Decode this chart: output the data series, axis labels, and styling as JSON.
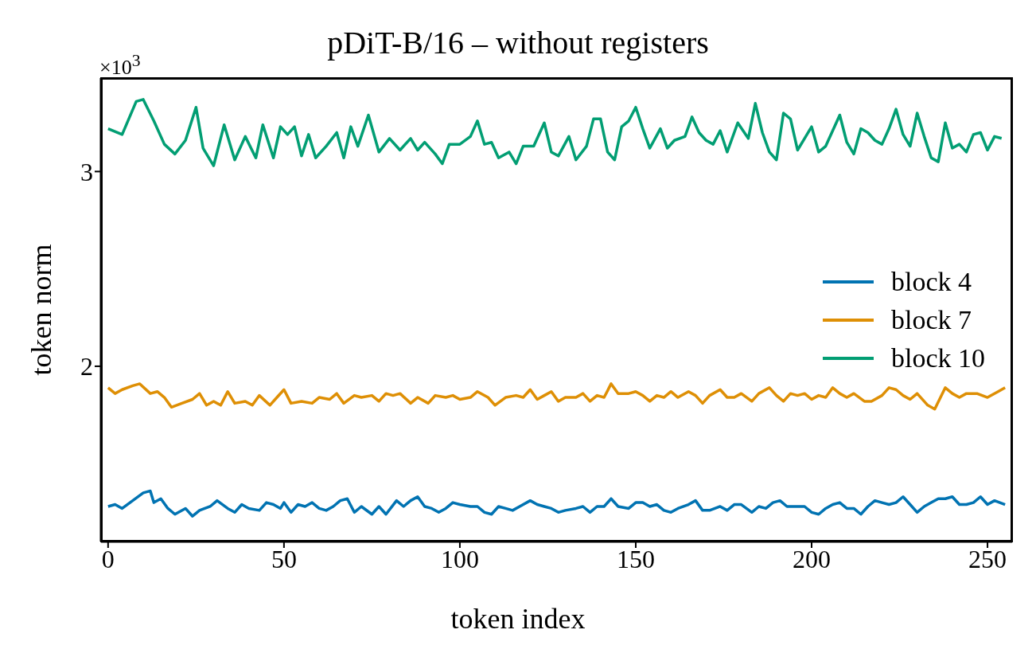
{
  "chart_data": {
    "type": "line",
    "title": "pDiT-B/16 – without registers",
    "xlabel": "token index",
    "ylabel": "token norm",
    "annotations": [
      "×10$^{3}$"
    ],
    "xlim": [
      -2,
      257
    ],
    "xticks": [
      0,
      50,
      100,
      150,
      200,
      250
    ],
    "ylim": [
      1.1,
      3.48
    ],
    "yticks": [
      2,
      3
    ],
    "legend": "right",
    "marker": "none",
    "line_style": "solid",
    "series": [
      {
        "name": "block 4",
        "color": "#0173b2",
        "x": [
          0,
          2,
          4,
          7,
          10,
          12,
          13,
          15,
          17,
          19,
          22,
          24,
          26,
          29,
          31,
          34,
          36,
          38,
          40,
          43,
          45,
          47,
          49,
          50,
          52,
          54,
          56,
          58,
          60,
          62,
          64,
          66,
          68,
          70,
          72,
          75,
          77,
          79,
          82,
          84,
          86,
          88,
          90,
          92,
          94,
          96,
          98,
          100,
          103,
          105,
          107,
          109,
          111,
          113,
          115,
          117,
          120,
          122,
          124,
          126,
          128,
          130,
          133,
          135,
          137,
          139,
          141,
          143,
          145,
          148,
          150,
          152,
          154,
          156,
          158,
          160,
          162,
          165,
          167,
          169,
          171,
          174,
          176,
          178,
          180,
          183,
          185,
          187,
          189,
          191,
          193,
          195,
          198,
          200,
          202,
          204,
          206,
          208,
          210,
          212,
          214,
          216,
          218,
          220,
          222,
          224,
          226,
          228,
          230,
          232,
          234,
          236,
          238,
          240,
          242,
          244,
          246,
          248,
          250,
          252,
          255
        ],
        "values": [
          1.28,
          1.29,
          1.27,
          1.31,
          1.35,
          1.36,
          1.3,
          1.32,
          1.27,
          1.24,
          1.27,
          1.23,
          1.26,
          1.28,
          1.31,
          1.27,
          1.25,
          1.29,
          1.27,
          1.26,
          1.3,
          1.29,
          1.27,
          1.3,
          1.25,
          1.29,
          1.28,
          1.3,
          1.27,
          1.26,
          1.28,
          1.31,
          1.32,
          1.25,
          1.28,
          1.24,
          1.28,
          1.24,
          1.31,
          1.28,
          1.31,
          1.33,
          1.28,
          1.27,
          1.25,
          1.27,
          1.3,
          1.29,
          1.28,
          1.28,
          1.25,
          1.24,
          1.28,
          1.27,
          1.26,
          1.28,
          1.31,
          1.29,
          1.28,
          1.27,
          1.25,
          1.26,
          1.27,
          1.28,
          1.25,
          1.28,
          1.28,
          1.32,
          1.28,
          1.27,
          1.3,
          1.3,
          1.28,
          1.29,
          1.26,
          1.25,
          1.27,
          1.29,
          1.31,
          1.26,
          1.26,
          1.28,
          1.26,
          1.29,
          1.29,
          1.25,
          1.28,
          1.27,
          1.3,
          1.31,
          1.28,
          1.28,
          1.28,
          1.25,
          1.24,
          1.27,
          1.29,
          1.3,
          1.27,
          1.27,
          1.24,
          1.28,
          1.31,
          1.3,
          1.29,
          1.3,
          1.33,
          1.29,
          1.25,
          1.28,
          1.3,
          1.32,
          1.32,
          1.33,
          1.29,
          1.29,
          1.3,
          1.33,
          1.29,
          1.31,
          1.29
        ]
      },
      {
        "name": "block 7",
        "color": "#de8f05",
        "x": [
          0,
          2,
          4,
          7,
          9,
          12,
          14,
          16,
          18,
          21,
          24,
          26,
          28,
          30,
          32,
          34,
          36,
          39,
          41,
          43,
          46,
          48,
          50,
          52,
          55,
          58,
          60,
          63,
          65,
          67,
          70,
          72,
          75,
          77,
          79,
          81,
          83,
          86,
          88,
          91,
          93,
          96,
          98,
          100,
          103,
          105,
          108,
          110,
          113,
          116,
          118,
          120,
          122,
          124,
          126,
          128,
          130,
          133,
          135,
          137,
          139,
          141,
          143,
          145,
          148,
          150,
          152,
          154,
          156,
          158,
          160,
          162,
          165,
          167,
          169,
          171,
          174,
          176,
          178,
          180,
          183,
          185,
          188,
          190,
          192,
          194,
          196,
          198,
          200,
          202,
          204,
          206,
          208,
          210,
          212,
          215,
          217,
          220,
          222,
          224,
          226,
          228,
          230,
          233,
          235,
          238,
          240,
          242,
          244,
          247,
          250,
          253,
          255
        ],
        "values": [
          1.89,
          1.86,
          1.88,
          1.9,
          1.91,
          1.86,
          1.87,
          1.84,
          1.79,
          1.81,
          1.83,
          1.86,
          1.8,
          1.82,
          1.8,
          1.87,
          1.81,
          1.82,
          1.8,
          1.85,
          1.8,
          1.84,
          1.88,
          1.81,
          1.82,
          1.81,
          1.84,
          1.83,
          1.86,
          1.81,
          1.85,
          1.84,
          1.85,
          1.82,
          1.86,
          1.85,
          1.86,
          1.81,
          1.84,
          1.81,
          1.85,
          1.84,
          1.85,
          1.83,
          1.84,
          1.87,
          1.84,
          1.8,
          1.84,
          1.85,
          1.84,
          1.88,
          1.83,
          1.85,
          1.87,
          1.82,
          1.84,
          1.84,
          1.86,
          1.82,
          1.85,
          1.84,
          1.91,
          1.86,
          1.86,
          1.87,
          1.85,
          1.82,
          1.85,
          1.84,
          1.87,
          1.84,
          1.87,
          1.85,
          1.81,
          1.85,
          1.88,
          1.84,
          1.84,
          1.86,
          1.82,
          1.86,
          1.89,
          1.85,
          1.82,
          1.86,
          1.85,
          1.86,
          1.83,
          1.85,
          1.84,
          1.89,
          1.86,
          1.84,
          1.86,
          1.82,
          1.82,
          1.85,
          1.89,
          1.88,
          1.85,
          1.83,
          1.86,
          1.8,
          1.78,
          1.89,
          1.86,
          1.84,
          1.86,
          1.86,
          1.84,
          1.87,
          1.89
        ]
      },
      {
        "name": "block 10",
        "color": "#029e73",
        "x": [
          0,
          4,
          8,
          10,
          13,
          16,
          19,
          22,
          25,
          27,
          30,
          33,
          36,
          39,
          42,
          44,
          47,
          49,
          51,
          53,
          55,
          57,
          59,
          62,
          65,
          67,
          69,
          71,
          74,
          77,
          80,
          83,
          86,
          88,
          90,
          93,
          95,
          97,
          100,
          103,
          105,
          107,
          109,
          111,
          114,
          116,
          118,
          121,
          124,
          126,
          128,
          131,
          133,
          136,
          138,
          140,
          142,
          144,
          146,
          148,
          150,
          152,
          154,
          157,
          159,
          161,
          164,
          166,
          168,
          170,
          172,
          174,
          176,
          179,
          182,
          184,
          186,
          188,
          190,
          192,
          194,
          196,
          198,
          200,
          202,
          204,
          206,
          208,
          210,
          212,
          214,
          216,
          218,
          220,
          222,
          224,
          226,
          228,
          230,
          232,
          234,
          236,
          238,
          240,
          242,
          244,
          246,
          248,
          250,
          252,
          254
        ],
        "values": [
          3.22,
          3.19,
          3.36,
          3.37,
          3.26,
          3.14,
          3.09,
          3.16,
          3.33,
          3.12,
          3.03,
          3.24,
          3.06,
          3.18,
          3.07,
          3.24,
          3.07,
          3.23,
          3.19,
          3.23,
          3.08,
          3.19,
          3.07,
          3.13,
          3.2,
          3.07,
          3.23,
          3.13,
          3.29,
          3.1,
          3.17,
          3.11,
          3.17,
          3.11,
          3.15,
          3.09,
          3.04,
          3.14,
          3.14,
          3.18,
          3.26,
          3.14,
          3.15,
          3.07,
          3.1,
          3.04,
          3.13,
          3.13,
          3.25,
          3.1,
          3.08,
          3.18,
          3.06,
          3.13,
          3.27,
          3.27,
          3.1,
          3.06,
          3.23,
          3.26,
          3.33,
          3.22,
          3.12,
          3.22,
          3.12,
          3.16,
          3.18,
          3.28,
          3.2,
          3.16,
          3.14,
          3.21,
          3.1,
          3.25,
          3.17,
          3.35,
          3.2,
          3.1,
          3.06,
          3.3,
          3.27,
          3.11,
          3.17,
          3.23,
          3.1,
          3.13,
          3.21,
          3.29,
          3.15,
          3.09,
          3.22,
          3.2,
          3.16,
          3.14,
          3.22,
          3.32,
          3.19,
          3.13,
          3.3,
          3.18,
          3.07,
          3.05,
          3.25,
          3.12,
          3.14,
          3.1,
          3.19,
          3.2,
          3.11,
          3.18,
          3.17
        ]
      }
    ]
  }
}
